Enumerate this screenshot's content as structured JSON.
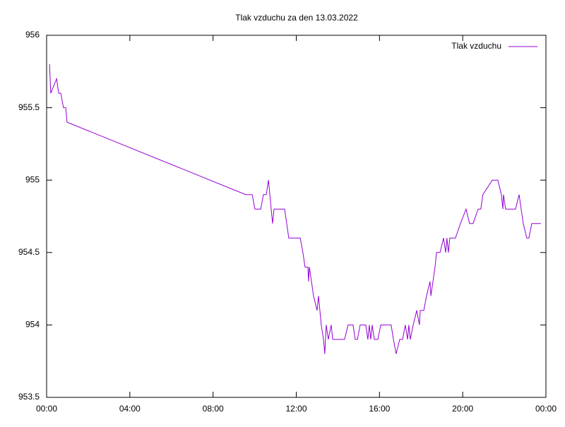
{
  "chart_data": {
    "type": "line",
    "title": "Tlak vzduchu za den 13.03.2022",
    "x": [
      0.14,
      0.2,
      0.48,
      0.58,
      0.68,
      0.81,
      0.92,
      0.98,
      9.57,
      9.88,
      10.01,
      10.29,
      10.42,
      10.56,
      10.66,
      10.73,
      10.86,
      10.93,
      11.44,
      11.54,
      11.64,
      12.19,
      12.32,
      12.42,
      12.56,
      12.59,
      12.63,
      12.73,
      12.83,
      13.0,
      13.07,
      13.2,
      13.31,
      13.37,
      13.44,
      13.54,
      13.68,
      13.75,
      14.32,
      14.49,
      14.73,
      14.83,
      14.94,
      15.07,
      15.34,
      15.44,
      15.51,
      15.58,
      15.65,
      15.75,
      15.92,
      16.06,
      16.56,
      16.67,
      16.8,
      16.97,
      17.11,
      17.24,
      17.35,
      17.41,
      17.48,
      17.62,
      17.79,
      17.92,
      17.96,
      18.13,
      18.26,
      18.43,
      18.47,
      18.57,
      18.67,
      18.74,
      18.91,
      19.08,
      19.18,
      19.24,
      19.31,
      19.38,
      19.65,
      19.89,
      20.16,
      20.33,
      20.5,
      20.74,
      20.87,
      20.97,
      21.42,
      21.69,
      21.86,
      21.93,
      21.96,
      22.06,
      22.54,
      22.71,
      22.91,
      23.08,
      23.18,
      23.32,
      23.76
    ],
    "series": [
      {
        "name": "Tlak vzduchu",
        "color": "#9400d3",
        "values": [
          955.8,
          955.6,
          955.7,
          955.6,
          955.6,
          955.5,
          955.5,
          955.4,
          954.9,
          954.9,
          954.8,
          954.8,
          954.9,
          954.9,
          955.0,
          954.9,
          954.7,
          954.8,
          954.8,
          954.7,
          954.6,
          954.6,
          954.5,
          954.4,
          954.4,
          954.3,
          954.4,
          954.3,
          954.2,
          954.1,
          954.2,
          954.0,
          953.9,
          953.8,
          954.0,
          953.9,
          954.0,
          953.9,
          953.9,
          954.0,
          954.0,
          953.9,
          953.9,
          954.0,
          954.0,
          953.9,
          954.0,
          953.9,
          954.0,
          953.9,
          953.9,
          954.0,
          954.0,
          953.9,
          953.8,
          953.9,
          953.9,
          954.0,
          953.9,
          954.0,
          953.9,
          954.0,
          954.1,
          954.0,
          954.1,
          954.1,
          954.2,
          954.3,
          954.2,
          954.3,
          954.4,
          954.5,
          954.5,
          954.6,
          954.5,
          954.6,
          954.5,
          954.6,
          954.6,
          954.7,
          954.8,
          954.7,
          954.7,
          954.8,
          954.8,
          954.9,
          955.0,
          955.0,
          954.9,
          954.8,
          954.9,
          954.8,
          954.8,
          954.9,
          954.7,
          954.6,
          954.6,
          954.7,
          954.7
        ]
      }
    ],
    "xlim": [
      0,
      24
    ],
    "xticks": [
      {
        "value": 0,
        "label": "00:00"
      },
      {
        "value": 4,
        "label": "04:00"
      },
      {
        "value": 8,
        "label": "08:00"
      },
      {
        "value": 12,
        "label": "12:00"
      },
      {
        "value": 16,
        "label": "16:00"
      },
      {
        "value": 20,
        "label": "20:00"
      },
      {
        "value": 24,
        "label": "00:00"
      }
    ],
    "ylim": [
      953.5,
      956
    ],
    "yticks": [
      953.5,
      954,
      954.5,
      955,
      955.5,
      956
    ],
    "legend": "top-right"
  }
}
